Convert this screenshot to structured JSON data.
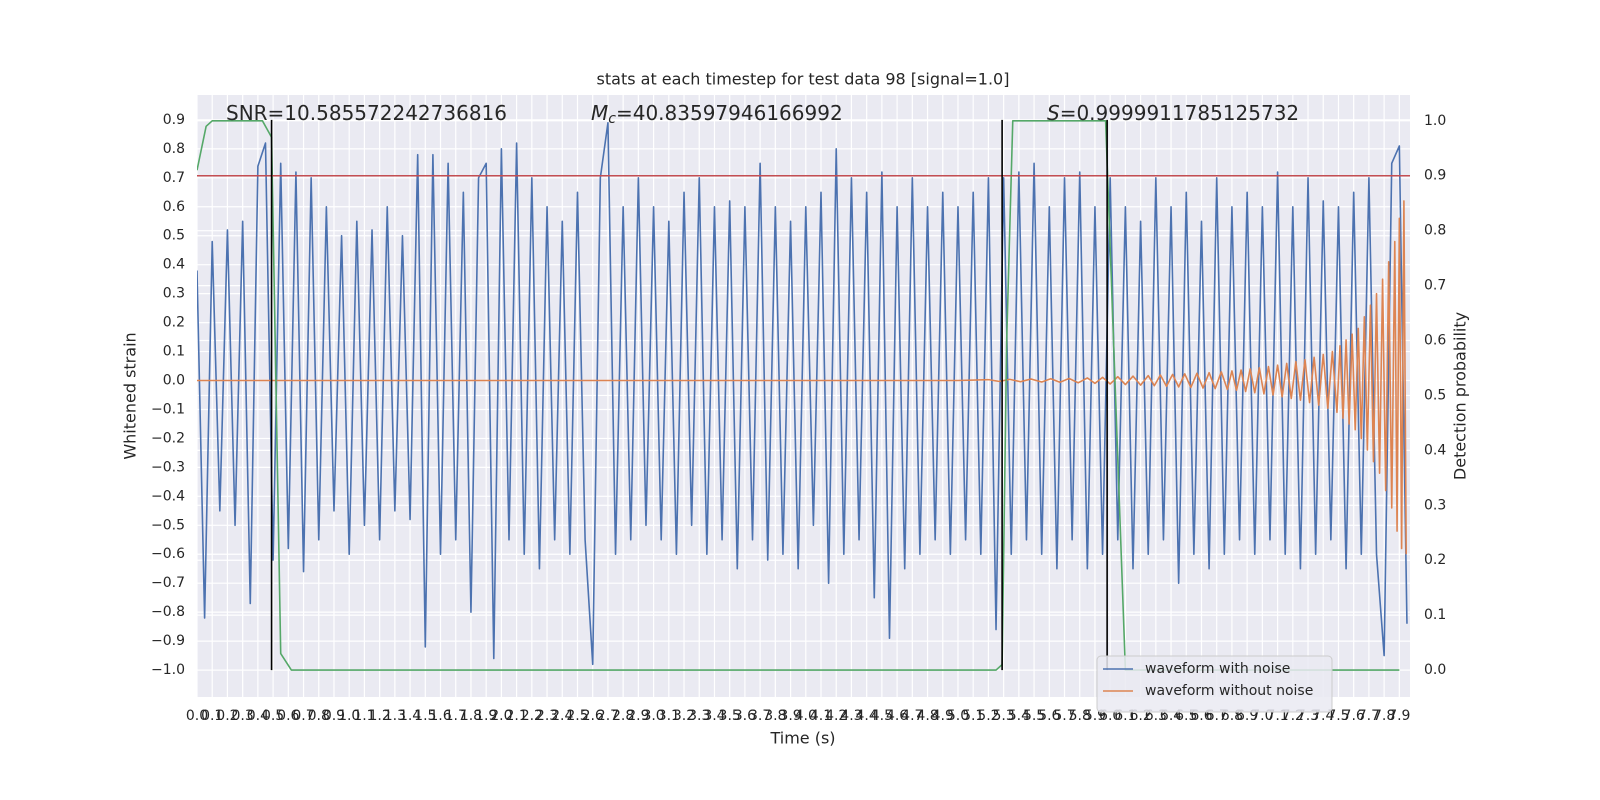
{
  "chart_data": {
    "type": "line",
    "title": "stats at each timestep for test data 98 [signal=1.0]",
    "xlabel": "Time (s)",
    "ylabel": "Whitened strain",
    "y2label": "Detection probability",
    "xlim": [
      0,
      7.97
    ],
    "ylim": [
      -1.093,
      0.986
    ],
    "y2lim": [
      -0.049,
      1.047
    ],
    "grid": true,
    "legend": "lower right",
    "xticks": [
      {
        "value": 0,
        "label": "0.0"
      },
      0.1,
      0.2,
      0.3,
      0.4,
      0.5,
      0.6,
      0.7,
      0.8,
      0.9,
      {
        "value": 1,
        "label": "1.0"
      },
      1.1,
      1.2,
      1.3,
      1.4,
      1.5,
      1.6,
      1.7,
      1.8,
      1.9,
      {
        "value": 2,
        "label": "2.0"
      },
      2.1,
      2.2,
      2.3,
      2.4,
      2.5,
      2.6,
      2.7,
      2.8,
      2.9,
      {
        "value": 3,
        "label": "3.0"
      },
      3.1,
      3.2,
      3.3,
      3.4,
      3.5,
      3.6,
      3.7,
      3.8,
      3.9,
      {
        "value": 4,
        "label": "4.0"
      },
      4.1,
      4.2,
      4.3,
      4.4,
      4.5,
      4.6,
      4.7,
      4.8,
      4.9,
      {
        "value": 5,
        "label": "5.0"
      },
      5.1,
      5.2,
      5.3,
      5.4,
      5.5,
      5.6,
      5.7,
      5.8,
      5.9,
      {
        "value": 6,
        "label": "6.0"
      },
      6.1,
      6.2,
      6.3,
      6.4,
      6.5,
      6.6,
      6.7,
      6.8,
      6.9,
      {
        "value": 7,
        "label": "7.0"
      },
      7.1,
      7.2,
      7.3,
      7.4,
      7.5,
      7.6,
      7.7,
      7.8,
      7.9
    ],
    "yticks": [
      {
        "value": -1,
        "label": "−1.0"
      },
      {
        "value": -0.9,
        "label": "−0.9"
      },
      {
        "value": -0.8,
        "label": "−0.8"
      },
      {
        "value": -0.7,
        "label": "−0.7"
      },
      {
        "value": -0.6,
        "label": "−0.6"
      },
      {
        "value": -0.5,
        "label": "−0.5"
      },
      {
        "value": -0.4,
        "label": "−0.4"
      },
      {
        "value": -0.3,
        "label": "−0.3"
      },
      {
        "value": -0.2,
        "label": "−0.2"
      },
      {
        "value": -0.1,
        "label": "−0.1"
      },
      {
        "value": 0,
        "label": "0.0"
      },
      0.1,
      0.2,
      0.3,
      0.4,
      0.5,
      0.6,
      0.7,
      0.8,
      0.9
    ],
    "y2ticks": [
      {
        "value": 0,
        "label": "0.0"
      },
      0.1,
      0.2,
      0.3,
      0.4,
      0.5,
      0.6,
      0.7,
      0.8,
      0.9,
      {
        "value": 1,
        "label": "1.0"
      }
    ],
    "annotations": [
      {
        "label": "SNR=10.585572242736816"
      },
      {
        "symbol": "M",
        "subscript": "c",
        "label": "=40.83597946166992"
      },
      {
        "symbol": "S",
        "label": "=0.9999911785125732"
      }
    ],
    "series": [
      {
        "name": "waveform with noise",
        "color": "#4c72b0",
        "x": [
          0,
          0.05,
          0.1,
          0.15,
          0.2,
          0.25,
          0.3,
          0.35,
          0.4,
          0.45,
          0.5,
          0.55,
          0.6,
          0.65,
          0.7,
          0.75,
          0.8,
          0.85,
          0.9,
          0.95,
          1,
          1.05,
          1.1,
          1.15,
          1.2,
          1.25,
          1.3,
          1.35,
          1.4,
          1.45,
          1.5,
          1.55,
          1.6,
          1.65,
          1.7,
          1.75,
          1.8,
          1.85,
          1.9,
          1.95,
          2,
          2.05,
          2.1,
          2.15,
          2.2,
          2.25,
          2.3,
          2.35,
          2.4,
          2.45,
          2.5,
          2.55,
          2.6,
          2.65,
          2.7,
          2.75,
          2.8,
          2.85,
          2.9,
          2.95,
          3,
          3.05,
          3.1,
          3.15,
          3.2,
          3.25,
          3.3,
          3.35,
          3.4,
          3.45,
          3.5,
          3.55,
          3.6,
          3.65,
          3.7,
          3.75,
          3.8,
          3.85,
          3.9,
          3.95,
          4,
          4.05,
          4.1,
          4.15,
          4.2,
          4.25,
          4.3,
          4.35,
          4.4,
          4.45,
          4.5,
          4.55,
          4.6,
          4.65,
          4.7,
          4.75,
          4.8,
          4.85,
          4.9,
          4.95,
          5,
          5.05,
          5.1,
          5.15,
          5.2,
          5.25,
          5.3,
          5.35,
          5.4,
          5.45,
          5.5,
          5.55,
          5.6,
          5.65,
          5.7,
          5.75,
          5.8,
          5.85,
          5.9,
          5.95,
          6,
          6.05,
          6.1,
          6.15,
          6.2,
          6.25,
          6.3,
          6.35,
          6.4,
          6.45,
          6.5,
          6.55,
          6.6,
          6.65,
          6.7,
          6.75,
          6.8,
          6.85,
          6.9,
          6.95,
          7,
          7.05,
          7.1,
          7.15,
          7.2,
          7.25,
          7.3,
          7.35,
          7.4,
          7.45,
          7.5,
          7.55,
          7.6,
          7.65,
          7.7,
          7.75,
          7.8,
          7.85,
          7.9,
          7.95
        ],
        "values": [
          0.38,
          -0.82,
          0.48,
          -0.45,
          0.52,
          -0.5,
          0.55,
          -0.77,
          0.74,
          0.82,
          -0.62,
          0.75,
          -0.58,
          0.72,
          -0.66,
          0.7,
          -0.55,
          0.6,
          -0.45,
          0.5,
          -0.6,
          0.55,
          -0.5,
          0.52,
          -0.55,
          0.6,
          -0.45,
          0.5,
          -0.48,
          0.78,
          -0.92,
          0.78,
          -0.6,
          0.75,
          -0.55,
          0.65,
          -0.8,
          0.7,
          0.75,
          -0.96,
          0.8,
          -0.55,
          0.82,
          -0.6,
          0.7,
          -0.65,
          0.6,
          -0.55,
          0.55,
          -0.6,
          0.65,
          -0.55,
          -0.98,
          0.7,
          0.89,
          -0.6,
          0.6,
          -0.55,
          0.7,
          -0.5,
          0.6,
          -0.55,
          0.55,
          -0.6,
          0.65,
          -0.5,
          0.7,
          -0.6,
          0.6,
          -0.55,
          0.62,
          -0.65,
          0.6,
          -0.55,
          0.75,
          -0.62,
          0.6,
          -0.6,
          0.55,
          -0.65,
          0.6,
          -0.5,
          0.65,
          -0.7,
          0.8,
          -0.6,
          0.7,
          -0.55,
          0.65,
          -0.75,
          0.72,
          -0.89,
          0.6,
          -0.65,
          0.7,
          -0.6,
          0.6,
          -0.55,
          0.65,
          -0.6,
          0.6,
          -0.55,
          0.65,
          -0.6,
          0.7,
          -0.86,
          0.7,
          -0.6,
          0.72,
          -0.55,
          0.75,
          -0.6,
          0.6,
          -0.65,
          0.7,
          -0.55,
          0.72,
          -0.65,
          0.6,
          -0.6,
          0.7,
          -0.55,
          0.6,
          -0.65,
          0.55,
          -0.6,
          0.7,
          -0.55,
          0.6,
          -0.7,
          0.65,
          -0.6,
          0.55,
          -0.65,
          0.7,
          -0.6,
          0.6,
          -0.55,
          0.65,
          -0.6,
          0.6,
          -0.55,
          0.72,
          -0.6,
          0.6,
          -0.65,
          0.7,
          -0.6,
          0.62,
          -0.55,
          0.6,
          -0.65,
          0.65,
          -0.6,
          0.7,
          -0.6,
          -0.95,
          0.75,
          0.81,
          -0.84
        ]
      },
      {
        "name": "waveform without noise",
        "color": "#dd8452",
        "x": [
          0,
          5,
          5.2,
          5.27,
          5.34,
          5.41,
          5.48,
          5.55,
          5.61,
          5.67,
          5.73,
          5.79,
          5.85,
          5.9,
          5.95,
          6,
          6.05,
          6.1,
          6.15,
          6.2,
          6.25,
          6.29,
          6.33,
          6.37,
          6.41,
          6.45,
          6.49,
          6.53,
          6.57,
          6.61,
          6.65,
          6.69,
          6.73,
          6.77,
          6.8,
          6.83,
          6.86,
          6.89,
          6.92,
          6.95,
          6.98,
          7.01,
          7.04,
          7.07,
          7.1,
          7.13,
          7.16,
          7.19,
          7.22,
          7.25,
          7.28,
          7.31,
          7.34,
          7.37,
          7.4,
          7.43,
          7.46,
          7.49,
          7.51,
          7.53,
          7.55,
          7.57,
          7.59,
          7.61,
          7.63,
          7.65,
          7.67,
          7.69,
          7.71,
          7.73,
          7.75,
          7.77,
          7.79,
          7.81,
          7.83,
          7.85,
          7.87,
          7.885,
          7.9,
          7.915,
          7.93,
          7.945
        ],
        "values": [
          0,
          0,
          0.003,
          -0.003,
          0.004,
          -0.004,
          0.005,
          -0.005,
          0.006,
          -0.006,
          0.007,
          -0.008,
          0.009,
          -0.01,
          0.011,
          -0.012,
          0.013,
          -0.014,
          0.015,
          -0.016,
          0.017,
          -0.018,
          0.019,
          -0.02,
          0.021,
          -0.022,
          0.023,
          -0.024,
          0.025,
          -0.026,
          0.027,
          -0.028,
          0.03,
          -0.031,
          0.033,
          -0.034,
          0.036,
          -0.038,
          0.04,
          -0.042,
          0.044,
          -0.046,
          0.048,
          -0.05,
          0.053,
          -0.056,
          0.059,
          -0.062,
          0.065,
          -0.068,
          0.072,
          -0.076,
          0.08,
          -0.085,
          0.09,
          -0.096,
          0.1,
          -0.11,
          0.12,
          -0.13,
          0.14,
          -0.15,
          0.16,
          -0.17,
          0.18,
          -0.2,
          0.22,
          -0.24,
          0.26,
          -0.28,
          0.3,
          -0.32,
          0.35,
          -0.38,
          0.41,
          -0.44,
          0.48,
          -0.52,
          0.56,
          -0.58,
          0.62,
          -0.6
        ]
      },
      {
        "color": "#55a868",
        "axis": "y2",
        "x": [
          0,
          0.06,
          0.1,
          0.43,
          0.49,
          0.55,
          0.62,
          5.25,
          5.29,
          5.32,
          5.36,
          5.97,
          6.1,
          7.9
        ],
        "values": [
          0.91,
          0.99,
          1,
          1,
          0.97,
          0.03,
          0,
          0,
          0.01,
          0.6,
          1,
          1,
          0,
          0
        ]
      }
    ],
    "hline": {
      "value": 0.9,
      "axis": "y2",
      "color": "#c44e52"
    },
    "vlines": {
      "x": [
        0.49,
        5.29,
        5.98
      ],
      "ymin": -1,
      "ymax": 0.9,
      "color": "#000000"
    }
  }
}
